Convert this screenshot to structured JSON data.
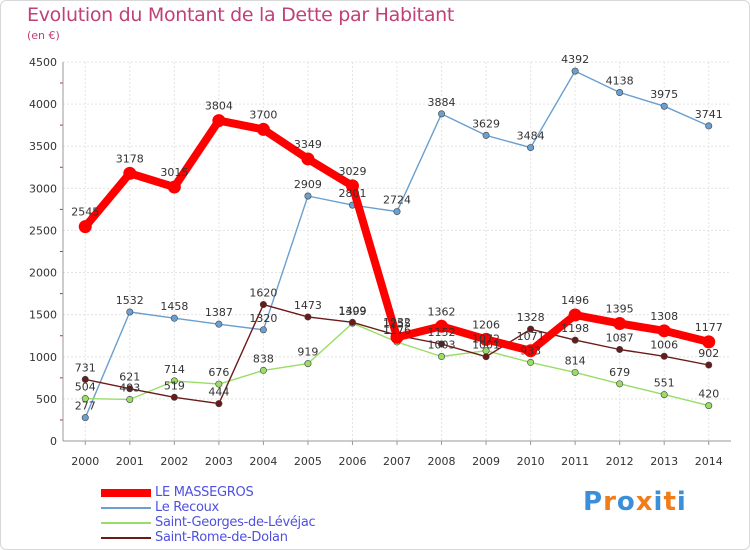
{
  "chart_data": {
    "type": "line",
    "title": "Evolution du Montant de la Dette par Habitant",
    "unit_label": "(en €)",
    "x": [
      "2000",
      "2001",
      "2002",
      "2003",
      "2004",
      "2005",
      "2006",
      "2007",
      "2008",
      "2009",
      "2010",
      "2011",
      "2012",
      "2013",
      "2014"
    ],
    "ylim": [
      0,
      4500
    ],
    "yticks": [
      0,
      500,
      1000,
      1500,
      2000,
      2500,
      3000,
      3500,
      4000,
      4500
    ],
    "grid": true,
    "series": [
      {
        "name": "LE MASSEGROS",
        "color": "#ff0000",
        "emphasis": true,
        "values": [
          2545,
          3178,
          3015,
          3804,
          3700,
          3349,
          3029,
          1232,
          1362,
          1206,
          1071,
          1496,
          1395,
          1308,
          1177
        ]
      },
      {
        "name": "Le Recoux",
        "color": "#6a9fd0",
        "values": [
          277,
          1532,
          1458,
          1387,
          1320,
          2909,
          2801,
          2724,
          3884,
          3629,
          3484,
          4392,
          4138,
          3975,
          3741
        ]
      },
      {
        "name": "Saint-Georges-de-Lévéjac",
        "color": "#99dd66",
        "values": [
          504,
          493,
          714,
          676,
          838,
          919,
          1399,
          1176,
          1003,
          1072,
          933,
          814,
          679,
          551,
          420
        ]
      },
      {
        "name": "Saint-Rome-de-Dolan",
        "color": "#6b1a1a",
        "values": [
          731,
          621,
          519,
          444,
          1620,
          1473,
          1409,
          1255,
          1152,
          1001,
          1328,
          1198,
          1087,
          1006,
          902
        ]
      }
    ]
  },
  "legend": [
    {
      "label": "LE MASSEGROS",
      "color": "#ff0000",
      "thickness": 8
    },
    {
      "label": "Le Recoux",
      "color": "#6a9fd0",
      "thickness": 2
    },
    {
      "label": "Saint-Georges-de-Lévéjac",
      "color": "#99dd66",
      "thickness": 2
    },
    {
      "label": "Saint-Rome-de-Dolan",
      "color": "#6b1a1a",
      "thickness": 2
    }
  ],
  "brand": {
    "letters": [
      "P",
      "r",
      "o",
      "x",
      "i",
      "t",
      "i"
    ],
    "colors": [
      "#3a8fd8",
      "#f07d1a",
      "#3a8fd8",
      "#f07d1a",
      "#3a8fd8",
      "#f07d1a",
      "#3a8fd8"
    ]
  }
}
